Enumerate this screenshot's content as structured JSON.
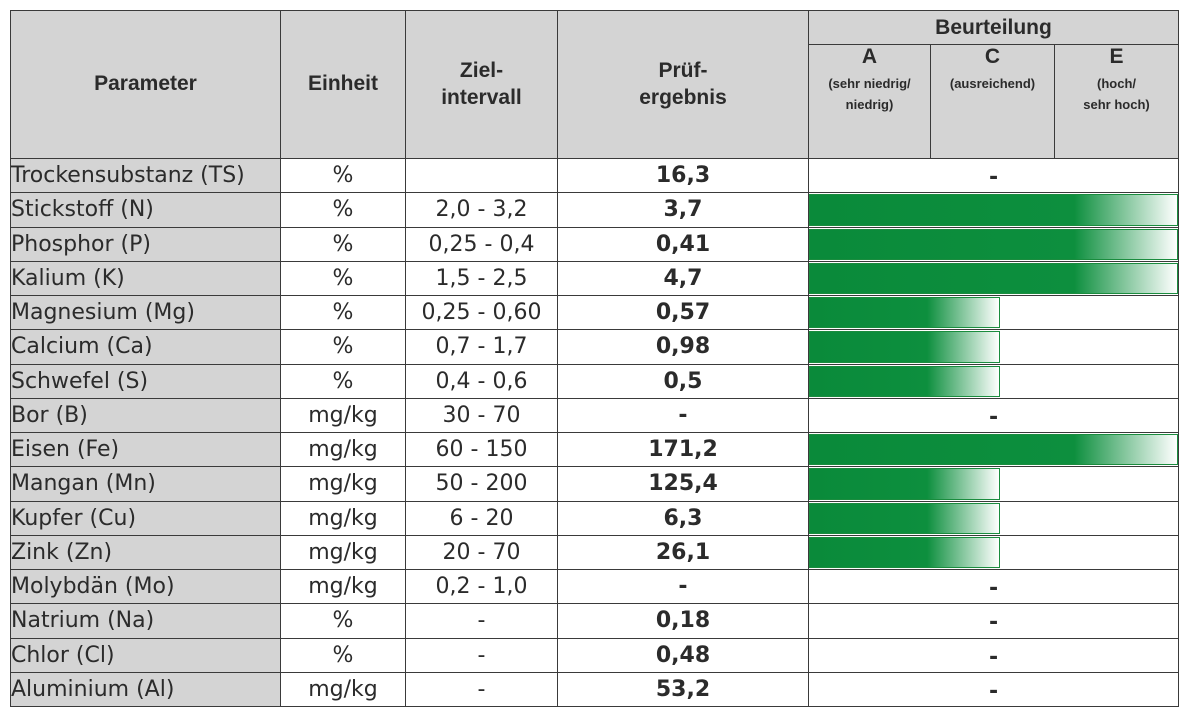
{
  "header": {
    "parameter": "Parameter",
    "einheit": "Einheit",
    "zielintervall": "Ziel-\nintervall",
    "pruefergebnis": "Prüf-\nergebnis",
    "beurteilung": "Beurteilung",
    "grades": [
      {
        "letter": "A",
        "desc": "(sehr niedrig/\nniedrig)"
      },
      {
        "letter": "C",
        "desc": "(ausreichend)"
      },
      {
        "letter": "E",
        "desc": "(hoch/\nsehr hoch)"
      }
    ]
  },
  "rows": [
    {
      "parameter": "Trockensubstanz (TS)",
      "unit": "%",
      "target": "",
      "result": "16,3",
      "rating": "none",
      "rating_text": "-"
    },
    {
      "parameter": "Stickstoff (N)",
      "unit": "%",
      "target": "2,0 - 3,2",
      "result": "3,7",
      "rating": "E",
      "rating_text": ""
    },
    {
      "parameter": "Phosphor (P)",
      "unit": "%",
      "target": "0,25 - 0,4",
      "result": "0,41",
      "rating": "E",
      "rating_text": ""
    },
    {
      "parameter": "Kalium (K)",
      "unit": "%",
      "target": "1,5 - 2,5",
      "result": "4,7",
      "rating": "E",
      "rating_text": ""
    },
    {
      "parameter": "Magnesium (Mg)",
      "unit": "%",
      "target": "0,25 - 0,60",
      "result": "0,57",
      "rating": "C",
      "rating_text": ""
    },
    {
      "parameter": "Calcium (Ca)",
      "unit": "%",
      "target": "0,7 - 1,7",
      "result": "0,98",
      "rating": "C",
      "rating_text": ""
    },
    {
      "parameter": "Schwefel (S)",
      "unit": "%",
      "target": "0,4 - 0,6",
      "result": "0,5",
      "rating": "C",
      "rating_text": ""
    },
    {
      "parameter": "Bor (B)",
      "unit": "mg/kg",
      "target": "30 - 70",
      "result": "-",
      "rating": "none",
      "rating_text": "-"
    },
    {
      "parameter": "Eisen (Fe)",
      "unit": "mg/kg",
      "target": "60 - 150",
      "result": "171,2",
      "rating": "E",
      "rating_text": ""
    },
    {
      "parameter": "Mangan (Mn)",
      "unit": "mg/kg",
      "target": "50 - 200",
      "result": "125,4",
      "rating": "C",
      "rating_text": ""
    },
    {
      "parameter": "Kupfer (Cu)",
      "unit": "mg/kg",
      "target": "6 - 20",
      "result": "6,3",
      "rating": "C",
      "rating_text": ""
    },
    {
      "parameter": "Zink (Zn)",
      "unit": "mg/kg",
      "target": "20 - 70",
      "result": "26,1",
      "rating": "C",
      "rating_text": ""
    },
    {
      "parameter": "Molybdän (Mo)",
      "unit": "mg/kg",
      "target": "0,2 - 1,0",
      "result": "-",
      "rating": "none",
      "rating_text": "-"
    },
    {
      "parameter": "Natrium (Na)",
      "unit": "%",
      "target": "-",
      "result": "0,18",
      "rating": "none",
      "rating_text": "-"
    },
    {
      "parameter": "Chlor (Cl)",
      "unit": "%",
      "target": "-",
      "result": "0,48",
      "rating": "none",
      "rating_text": "-"
    },
    {
      "parameter": "Aluminium (Al)",
      "unit": "mg/kg",
      "target": "-",
      "result": "53,2",
      "rating": "none",
      "rating_text": "-"
    }
  ],
  "colors": {
    "header_bg": "#d4d4d4",
    "bar_green": "#0d8f3e",
    "border": "#3a3a3a"
  }
}
